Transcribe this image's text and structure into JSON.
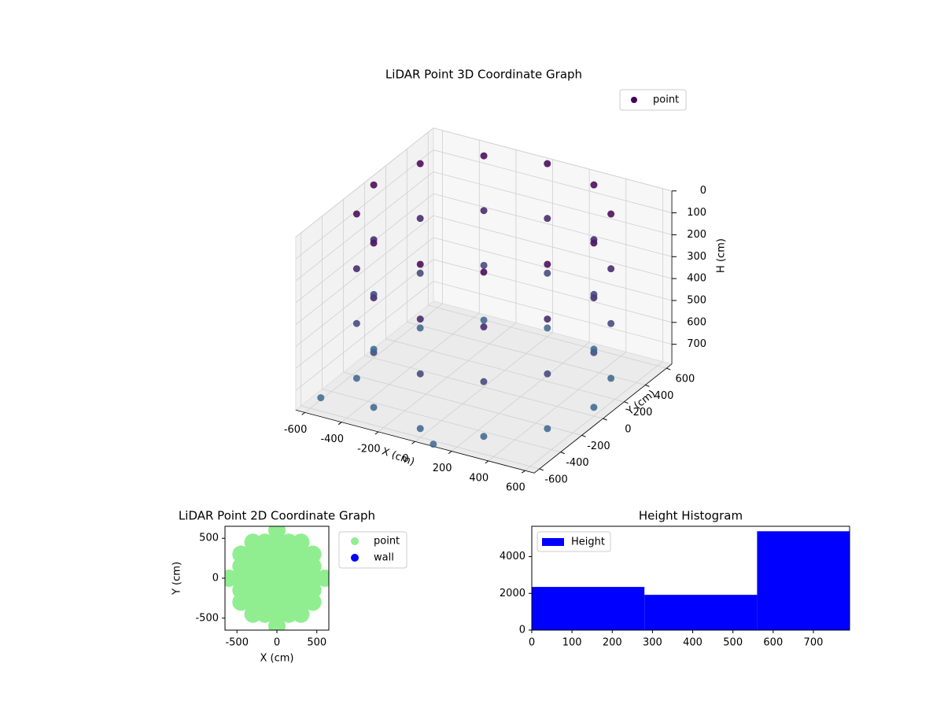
{
  "chart_data": [
    {
      "type": "scatter3d",
      "title": "LiDAR Point 3D Coordinate Graph",
      "xlabel": "X (cm)",
      "ylabel": "Y (cm)",
      "zlabel": "H (cm)",
      "xlim": [
        -650,
        650
      ],
      "ylim": [
        -650,
        650
      ],
      "zlim": [
        0,
        790
      ],
      "z_inverted": true,
      "xticks": [
        -600,
        -400,
        -200,
        0,
        200,
        400,
        600
      ],
      "yticks": [
        -600,
        -400,
        -200,
        0,
        200,
        400,
        600
      ],
      "zticks": [
        0,
        100,
        200,
        300,
        400,
        500,
        600,
        700
      ],
      "colormap": [
        "#440154",
        "#3b6a8f"
      ],
      "legend": "upper right",
      "series": [
        {
          "name": "point",
          "color": "#440154",
          "x": [
            600,
            520,
            300,
            0,
            -300,
            -520,
            -600,
            -520,
            -300,
            0,
            300,
            520,
            600,
            520,
            300,
            0,
            -300,
            -520,
            -600,
            -520,
            -300,
            0,
            300,
            520,
            600,
            520,
            300,
            0,
            -300,
            -520,
            -600,
            -520,
            -300,
            0,
            300,
            520,
            600,
            520,
            300,
            0,
            -300,
            -520,
            -600,
            -520,
            -300,
            0,
            300,
            520,
            -600,
            100
          ],
          "y": [
            0,
            300,
            520,
            600,
            520,
            300,
            0,
            -300,
            -520,
            -600,
            -520,
            -300,
            0,
            300,
            520,
            600,
            520,
            300,
            0,
            -300,
            -520,
            -600,
            -520,
            -300,
            0,
            300,
            520,
            600,
            520,
            300,
            0,
            -300,
            -520,
            -600,
            -520,
            -300,
            0,
            300,
            520,
            600,
            520,
            300,
            0,
            -300,
            -520,
            -600,
            -520,
            -300,
            -500,
            -650
          ],
          "h": [
            0,
            0,
            0,
            0,
            0,
            0,
            0,
            0,
            0,
            0,
            0,
            0,
            250,
            250,
            250,
            250,
            250,
            250,
            250,
            250,
            250,
            250,
            250,
            250,
            500,
            500,
            500,
            500,
            500,
            500,
            500,
            500,
            500,
            500,
            500,
            500,
            750,
            750,
            750,
            750,
            750,
            750,
            750,
            750,
            750,
            750,
            750,
            750,
            780,
            780
          ]
        }
      ]
    },
    {
      "type": "scatter",
      "title": "LiDAR Point 2D Coordinate Graph",
      "xlabel": "X (cm)",
      "ylabel": "Y (cm)",
      "xlim": [
        -650,
        650
      ],
      "ylim": [
        -650,
        650
      ],
      "xticks": [
        -500,
        0,
        500
      ],
      "yticks": [
        -500,
        0,
        500
      ],
      "legend": "outside right",
      "series": [
        {
          "name": "point",
          "color": "#90ee90",
          "x": [
            0,
            0,
            0,
            0,
            0,
            0,
            0,
            0,
            0,
            150,
            150,
            150,
            150,
            150,
            150,
            150,
            -150,
            -150,
            -150,
            -150,
            -150,
            -150,
            -150,
            300,
            300,
            300,
            300,
            300,
            300,
            300,
            -300,
            -300,
            -300,
            -300,
            -300,
            -300,
            -300,
            450,
            450,
            450,
            450,
            450,
            -450,
            -450,
            -450,
            -450,
            -450,
            600,
            -600
          ],
          "y": [
            -600,
            -450,
            -300,
            -150,
            0,
            150,
            300,
            450,
            600,
            -450,
            -300,
            -150,
            0,
            150,
            300,
            450,
            -450,
            -300,
            -150,
            0,
            150,
            300,
            450,
            -450,
            -300,
            -150,
            0,
            150,
            300,
            450,
            -450,
            -300,
            -150,
            0,
            150,
            300,
            450,
            -300,
            -150,
            0,
            150,
            300,
            -300,
            -150,
            0,
            150,
            300,
            0,
            0
          ]
        },
        {
          "name": "wall",
          "color": "#0000ff",
          "x": [],
          "y": []
        }
      ]
    },
    {
      "type": "histogram",
      "title": "Height Histogram",
      "legend": "upper left",
      "xlim": [
        0,
        790
      ],
      "ylim": [
        0,
        5650
      ],
      "xticks": [
        0,
        100,
        200,
        300,
        400,
        500,
        600,
        700
      ],
      "yticks": [
        0,
        2000,
        4000
      ],
      "series": [
        {
          "name": "Height",
          "color": "#0000ff",
          "bins": [
            0,
            280,
            560,
            790
          ],
          "values": [
            2350,
            1920,
            5380
          ]
        }
      ]
    }
  ]
}
